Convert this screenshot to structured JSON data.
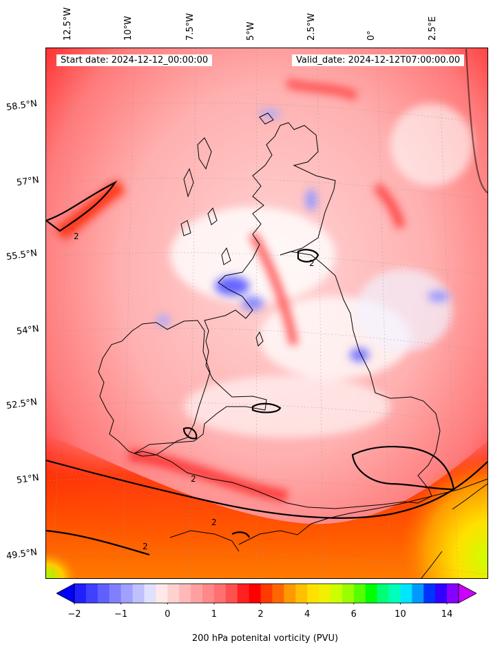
{
  "map": {
    "start_date": "Start date: 2024-12-12_00:00:00",
    "valid_date": "Valid_date: 2024-12-12T07:00:00.00",
    "longitude_labels": [
      "12.5°W",
      "10°W",
      "7.5°W",
      "5°W",
      "2.5°W",
      "0°",
      "2.5°E"
    ],
    "latitude_labels": [
      "58.5°N",
      "57°N",
      "55.5°N",
      "54°N",
      "52.5°N",
      "51°N",
      "49.5°N"
    ],
    "contour_label": "2",
    "colors": {
      "negative": "#0000ff",
      "zero": "#ffffff",
      "low_positive": "#ff8080",
      "two": "#ff0000",
      "mid": "#ff9900",
      "high": "#ffff00",
      "very_high": "#00ff00",
      "max": "#cc00ff"
    }
  },
  "colorbar": {
    "label": "200 hPa potenital vorticity (PVU)",
    "tick_labels": [
      "−2",
      "−1",
      "0",
      "1",
      "2",
      "4",
      "6",
      "10",
      "14"
    ],
    "levels": [
      "#0000ff",
      "#2020ff",
      "#4040ff",
      "#6060ff",
      "#8080ff",
      "#a0a0ff",
      "#c0c0ff",
      "#e0e0ff",
      "#ffe8e8",
      "#ffd0d0",
      "#ffb8b8",
      "#ffa0a0",
      "#ff8888",
      "#ff7070",
      "#ff5050",
      "#ff2020",
      "#ff0000",
      "#ff3a00",
      "#ff6600",
      "#ff9900",
      "#ffc000",
      "#ffe000",
      "#f0f000",
      "#ccff00",
      "#99ff00",
      "#55ff00",
      "#00ff00",
      "#00ff77",
      "#00ffbb",
      "#00e6ff",
      "#0099ff",
      "#0033ff",
      "#3300ff",
      "#8800ff",
      "#cc00ff"
    ]
  }
}
